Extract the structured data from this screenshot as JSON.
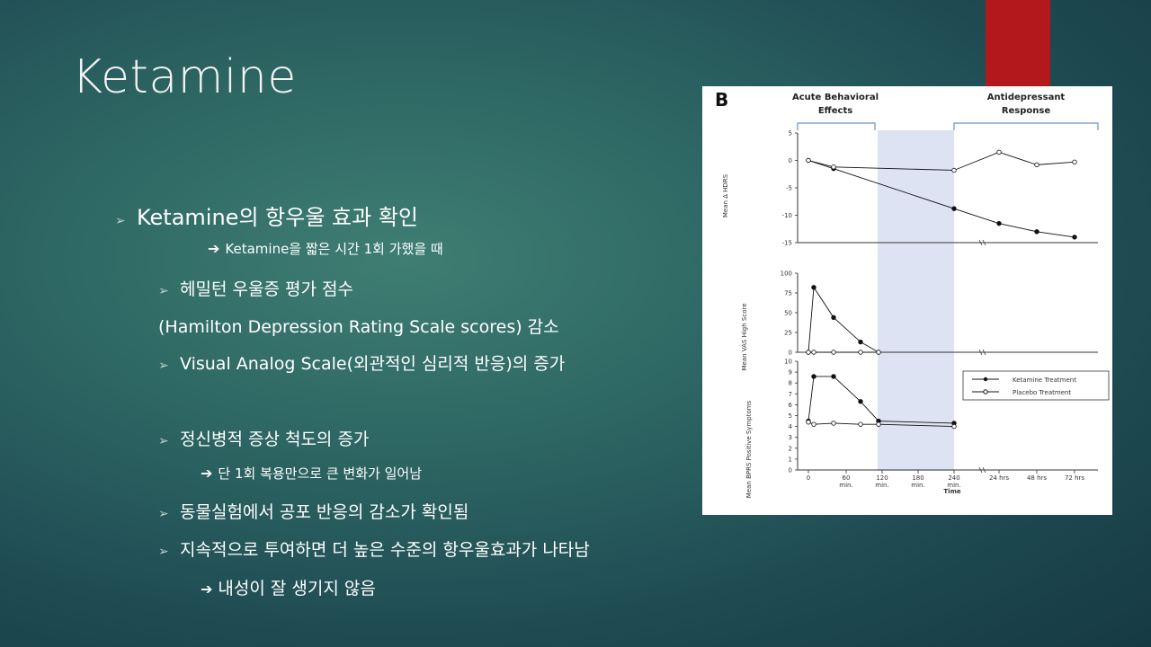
{
  "slide": {
    "title": "Ketamine",
    "bullets": [
      {
        "text": "Ketamine의 항우울 효과 확인"
      },
      {
        "text": "Ketamine을 짧은 시간 1회 가했을 때"
      },
      {
        "text": "헤밀턴 우울증 평가 점수"
      },
      {
        "text": "(Hamilton Depression Rating Scale scores) 감소"
      },
      {
        "text": "Visual Analog Scale(외관적인 심리적 반응)의 증가"
      },
      {
        "text": "정신병적 증상 척도의 증가"
      },
      {
        "text": "단 1회 복용만으로 큰 변화가 일어남"
      },
      {
        "text": "동물실험에서 공포 반응의 감소가 확인됨"
      },
      {
        "text": "지속적으로 투여하면 더 높은 수준의 항우울효과가 나타남"
      },
      {
        "text": "내성이 잘 생기지 않음"
      }
    ]
  },
  "figure": {
    "panel_letter": "B",
    "header_left_1": "Acute Behavioral",
    "header_left_2": "Effects",
    "header_right_1": "Antidepressant",
    "header_right_2": "Response",
    "legend_ketamine": "Ketamine Treatment",
    "legend_placebo": "Placebo Treatment",
    "xlabel": "Time",
    "x_tick_labels": [
      "0",
      "60",
      "120",
      "180",
      "240",
      "24 hrs",
      "48 hrs",
      "72 hrs"
    ],
    "x_tick_sublabel": "min.",
    "colors": {
      "highlight": "#dde3f2",
      "bracket": "#6b8fc7"
    }
  },
  "chart_data": [
    {
      "type": "line",
      "ylabel": "Mean Δ HDRS",
      "ylim": [
        -15,
        5
      ],
      "y_ticks": [
        "5",
        "0",
        "-5",
        "-10",
        "-15"
      ],
      "x": [
        "0",
        "40 min",
        "240 min",
        "24 hrs",
        "48 hrs",
        "72 hrs"
      ],
      "series": [
        {
          "name": "Ketamine Treatment",
          "values": [
            0,
            -1.5,
            -8.8,
            -11.5,
            -13,
            -14
          ]
        },
        {
          "name": "Placebo Treatment",
          "values": [
            0,
            -1.2,
            -1.8,
            1.5,
            -0.8,
            -0.3
          ]
        }
      ]
    },
    {
      "type": "line",
      "ylabel": "Mean VAS High Score",
      "ylim": [
        0,
        100
      ],
      "y_ticks": [
        "100",
        "75",
        "50",
        "25",
        "0"
      ],
      "x": [
        "0",
        "10 min",
        "40 min",
        "80 min",
        "110 min"
      ],
      "series": [
        {
          "name": "Ketamine Treatment",
          "values": [
            0,
            82,
            44,
            13,
            0
          ]
        },
        {
          "name": "Placebo Treatment",
          "values": [
            0,
            0,
            0,
            0,
            0
          ]
        }
      ]
    },
    {
      "type": "line",
      "ylabel": "Mean BPRS Positive Symptoms",
      "ylim": [
        0,
        10
      ],
      "y_ticks": [
        "10",
        "9",
        "8",
        "7",
        "6",
        "5",
        "4",
        "3",
        "2",
        "1",
        "0"
      ],
      "x": [
        "0",
        "10 min",
        "40 min",
        "80 min",
        "110 min",
        "240 min"
      ],
      "series": [
        {
          "name": "Ketamine Treatment",
          "values": [
            4.5,
            8.6,
            8.6,
            6.3,
            4.5,
            4.3
          ]
        },
        {
          "name": "Placebo Treatment",
          "values": [
            4.4,
            4.2,
            4.3,
            4.2,
            4.2,
            4.0
          ]
        }
      ]
    }
  ]
}
